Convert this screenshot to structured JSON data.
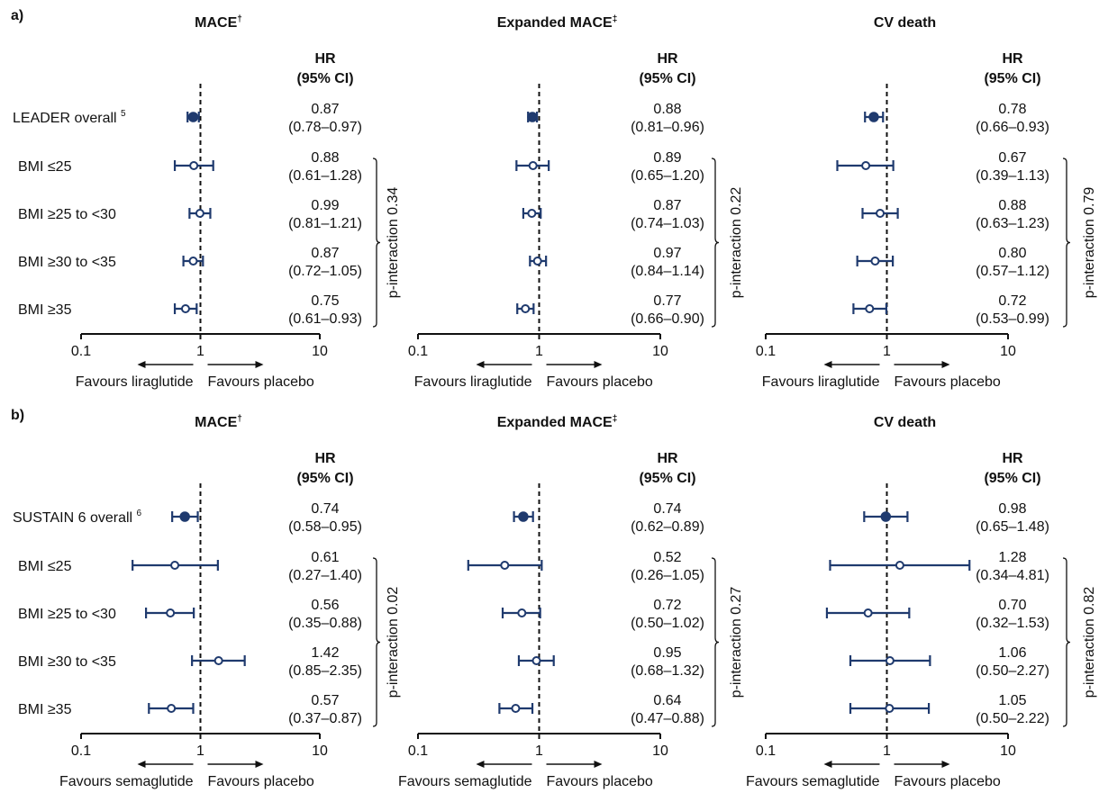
{
  "colors": {
    "marker": "#1f3a6e",
    "axis": "#111111",
    "refline": "#111111"
  },
  "chart_data": [
    {
      "panel": "a)",
      "type": "forest",
      "xscale": "log",
      "xticks": [
        "0.1",
        "1",
        "10"
      ],
      "xlim": [
        0.1,
        10
      ],
      "rows": [
        "LEADER overall5",
        "BMI ≤25",
        "BMI ≥25 to <30",
        "BMI ≥30 to <35",
        "BMI ≥35"
      ],
      "overall_label": "LEADER overall",
      "overall_ref": "5",
      "favours_left": "Favours liraglutide",
      "favours_right": "Favours placebo",
      "hr_header_1": "HR",
      "hr_header_2": "(95% CI)",
      "plots": [
        {
          "title": "MACE",
          "title_mark": "†",
          "p_interaction": "p-interaction 0.34",
          "hr": [
            0.87,
            0.88,
            0.99,
            0.87,
            0.75
          ],
          "lo": [
            0.78,
            0.61,
            0.81,
            0.72,
            0.61
          ],
          "hi": [
            0.97,
            1.28,
            1.21,
            1.05,
            0.93
          ],
          "hr_text": [
            "0.87",
            "0.88",
            "0.99",
            "0.87",
            "0.75"
          ],
          "ci_text": [
            "(0.78–0.97)",
            "(0.61–1.28)",
            "(0.81–1.21)",
            "(0.72–1.05)",
            "(0.61–0.93)"
          ]
        },
        {
          "title": "Expanded MACE",
          "title_mark": "‡",
          "p_interaction": "p-interaction 0.22",
          "hr": [
            0.88,
            0.89,
            0.87,
            0.97,
            0.77
          ],
          "lo": [
            0.81,
            0.65,
            0.74,
            0.84,
            0.66
          ],
          "hi": [
            0.96,
            1.2,
            1.03,
            1.14,
            0.9
          ],
          "hr_text": [
            "0.88",
            "0.89",
            "0.87",
            "0.97",
            "0.77"
          ],
          "ci_text": [
            "(0.81–0.96)",
            "(0.65–1.20)",
            "(0.74–1.03)",
            "(0.84–1.14)",
            "(0.66–0.90)"
          ]
        },
        {
          "title": "CV death",
          "title_mark": "",
          "p_interaction": "p-interaction 0.79",
          "hr": [
            0.78,
            0.67,
            0.88,
            0.8,
            0.72
          ],
          "lo": [
            0.66,
            0.39,
            0.63,
            0.57,
            0.53
          ],
          "hi": [
            0.93,
            1.13,
            1.23,
            1.12,
            0.99
          ],
          "hr_text": [
            "0.78",
            "0.67",
            "0.88",
            "0.80",
            "0.72"
          ],
          "ci_text": [
            "(0.66–0.93)",
            "(0.39–1.13)",
            "(0.63–1.23)",
            "(0.57–1.12)",
            "(0.53–0.99)"
          ]
        }
      ]
    },
    {
      "panel": "b)",
      "type": "forest",
      "xscale": "log",
      "xticks": [
        "0.1",
        "1",
        "10"
      ],
      "xlim": [
        0.1,
        10
      ],
      "rows": [
        "SUSTAIN 6 overall6",
        "BMI ≤25",
        "BMI ≥25 to <30",
        "BMI ≥30 to <35",
        "BMI ≥35"
      ],
      "overall_label": "SUSTAIN 6 overall",
      "overall_ref": "6",
      "favours_left": "Favours semaglutide",
      "favours_right": "Favours placebo",
      "hr_header_1": "HR",
      "hr_header_2": "(95% CI)",
      "plots": [
        {
          "title": "MACE",
          "title_mark": "†",
          "p_interaction": "p-interaction 0.02",
          "hr": [
            0.74,
            0.61,
            0.56,
            1.42,
            0.57
          ],
          "lo": [
            0.58,
            0.27,
            0.35,
            0.85,
            0.37
          ],
          "hi": [
            0.95,
            1.4,
            0.88,
            2.35,
            0.87
          ],
          "hr_text": [
            "0.74",
            "0.61",
            "0.56",
            "1.42",
            "0.57"
          ],
          "ci_text": [
            "(0.58–0.95)",
            "(0.27–1.40)",
            "(0.35–0.88)",
            "(0.85–2.35)",
            "(0.37–0.87)"
          ]
        },
        {
          "title": "Expanded MACE",
          "title_mark": "‡",
          "p_interaction": "p-interaction 0.27",
          "hr": [
            0.74,
            0.52,
            0.72,
            0.95,
            0.64
          ],
          "lo": [
            0.62,
            0.26,
            0.5,
            0.68,
            0.47
          ],
          "hi": [
            0.89,
            1.05,
            1.02,
            1.32,
            0.88
          ],
          "hr_text": [
            "0.74",
            "0.52",
            "0.72",
            "0.95",
            "0.64"
          ],
          "ci_text": [
            "(0.62–0.89)",
            "(0.26–1.05)",
            "(0.50–1.02)",
            "(0.68–1.32)",
            "(0.47–0.88)"
          ]
        },
        {
          "title": "CV death",
          "title_mark": "",
          "p_interaction": "p-interaction 0.82",
          "hr": [
            0.98,
            1.28,
            0.7,
            1.06,
            1.05
          ],
          "lo": [
            0.65,
            0.34,
            0.32,
            0.5,
            0.5
          ],
          "hi": [
            1.48,
            4.81,
            1.53,
            2.27,
            2.22
          ],
          "hr_text": [
            "0.98",
            "1.28",
            "0.70",
            "1.06",
            "1.05"
          ],
          "ci_text": [
            "(0.65–1.48)",
            "(0.34–4.81)",
            "(0.32–1.53)",
            "(0.50–2.27)",
            "(0.50–2.22)"
          ]
        }
      ]
    }
  ]
}
